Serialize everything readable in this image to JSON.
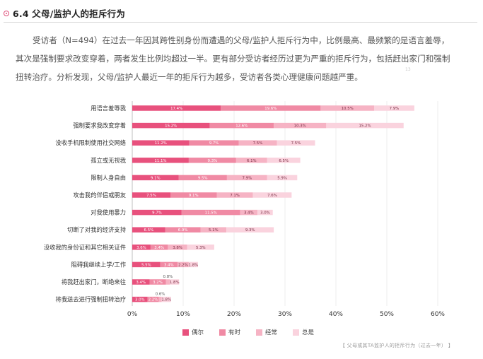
{
  "header": {
    "title": "6.4 父母/监护人的拒斥行为"
  },
  "intro": {
    "text": "受访者（N=494）在过去一年因其跨性别身份而遭遇的父母/监护人拒斥行为中，比例最高、最频繁的是语言羞辱，其次是强制要求改变穿着，两者发生比例均超过一半。更有部分受访者经历过更为严重的拒斥行为，包括赶出家门和强制扭转治疗。分析发现，父母/监护人最近一年的拒斥行为越多，受访者各类心理健康问题越严重。",
    "note_mark": "13"
  },
  "colors": {
    "accent": "#e04e7a",
    "s1": "#e8517d",
    "s2": "#f08aa4",
    "s3": "#f6b3c4",
    "s4": "#fad3de"
  },
  "chart_data": {
    "type": "bar",
    "orientation": "horizontal",
    "stacked": true,
    "categories": [
      "用语言羞辱我",
      "强制要求我改变穿着",
      "没收手机限制使用社交网络",
      "孤立或无视我",
      "限制人身自由",
      "攻击我的伴侣或朋友",
      "对我使用暴力",
      "切断了对我的经济支持",
      "没收我的身份证和其它相关证件",
      "阻碍我继续上学/工作",
      "将我赶出家门，断绝来往",
      "将我送去进行强制扭转治疗"
    ],
    "series": [
      {
        "name": "偶尔",
        "values": [
          17.4,
          15.2,
          11.2,
          11.1,
          9.1,
          7.5,
          9.7,
          6.5,
          3.6,
          5.5,
          3.4,
          3.0
        ]
      },
      {
        "name": "有时",
        "values": [
          19.6,
          12.6,
          9.7,
          9.3,
          9.5,
          9.1,
          11.5,
          6.9,
          3.4,
          3.4,
          3.2,
          2.2
        ]
      },
      {
        "name": "经常",
        "values": [
          10.5,
          10.3,
          7.5,
          6.1,
          7.9,
          7.1,
          3.4,
          5.1,
          3.8,
          2.2,
          0.8,
          0.6
        ]
      },
      {
        "name": "总是",
        "values": [
          7.9,
          15.2,
          7.5,
          6.5,
          5.9,
          7.6,
          3.0,
          9.3,
          5.3,
          1.8,
          1.8,
          1.8
        ]
      }
    ],
    "labels": [
      [
        "17.4%",
        "19.6%",
        "10.5%",
        "7.9%"
      ],
      [
        "15.2%",
        "12.6%",
        "10.3%",
        "15.2%"
      ],
      [
        "11.2%",
        "9.7%",
        "7.5%",
        "7.5%"
      ],
      [
        "11.1%",
        "9.3%",
        "6.1%",
        "6.5%"
      ],
      [
        "9.1%",
        "9.5%",
        "7.9%",
        "5.9%"
      ],
      [
        "7.5%",
        "9.1%",
        "7.1%",
        "7.6%"
      ],
      [
        "9.7%",
        "11.5%",
        "3.4%",
        "3.0%"
      ],
      [
        "6.5%",
        "6.9%",
        "5.1%",
        "9.3%"
      ],
      [
        "3.6%",
        "3.4%",
        "3.8%",
        "5.3%"
      ],
      [
        "5.5%",
        "3.4%",
        "2.2%",
        "1.8%"
      ],
      [
        "3.4%",
        "3.2%",
        "0.8%",
        "1.8%"
      ],
      [
        "3.0%",
        "2.2%",
        "0.6%",
        "1.8%"
      ]
    ],
    "xticks": [
      "0%",
      "10%",
      "20%",
      "30%",
      "40%",
      "50%",
      "60%"
    ],
    "xlim": [
      0,
      60
    ],
    "grid": true,
    "legend": "bottom-center",
    "source": "【 父母或其TA监护人的拒斥行为（过去一年） 】"
  }
}
